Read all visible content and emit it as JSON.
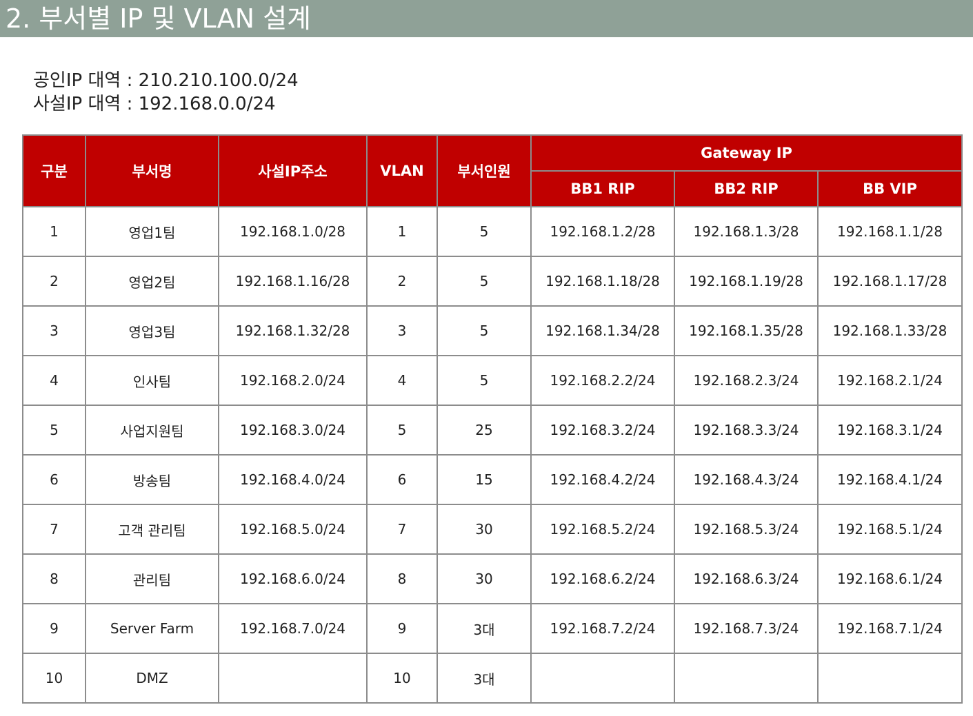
{
  "header": {
    "title": "2. 부서별 IP 및 VLAN 설계"
  },
  "ip_ranges": [
    {
      "label": "공인IP 대역",
      "value": "210.210.100.0/24"
    },
    {
      "label": "사설IP 대역",
      "value": "192.168.0.0/24"
    }
  ],
  "table": {
    "headers": {
      "no": "구분",
      "dept": "부서명",
      "subnet": "사설IP주소",
      "vlan": "VLAN",
      "staff": "부서인원",
      "gateway": "Gateway IP",
      "bb1": "BB1 RIP",
      "bb2": "BB2 RIP",
      "vip": "BB VIP"
    },
    "rows": [
      {
        "no": "1",
        "dept": "영업1팀",
        "subnet": "192.168.1.0/28",
        "vlan": "1",
        "staff": "5",
        "bb1": "192.168.1.2/28",
        "bb2": "192.168.1.3/28",
        "vip": "192.168.1.1/28"
      },
      {
        "no": "2",
        "dept": "영업2팀",
        "subnet": "192.168.1.16/28",
        "vlan": "2",
        "staff": "5",
        "bb1": "192.168.1.18/28",
        "bb2": "192.168.1.19/28",
        "vip": "192.168.1.17/28"
      },
      {
        "no": "3",
        "dept": "영업3팀",
        "subnet": "192.168.1.32/28",
        "vlan": "3",
        "staff": "5",
        "bb1": "192.168.1.34/28",
        "bb2": "192.168.1.35/28",
        "vip": "192.168.1.33/28"
      },
      {
        "no": "4",
        "dept": "인사팀",
        "subnet": "192.168.2.0/24",
        "vlan": "4",
        "staff": "5",
        "bb1": "192.168.2.2/24",
        "bb2": "192.168.2.3/24",
        "vip": "192.168.2.1/24"
      },
      {
        "no": "5",
        "dept": "사업지원팀",
        "subnet": "192.168.3.0/24",
        "vlan": "5",
        "staff": "25",
        "bb1": "192.168.3.2/24",
        "bb2": "192.168.3.3/24",
        "vip": "192.168.3.1/24"
      },
      {
        "no": "6",
        "dept": "방송팀",
        "subnet": "192.168.4.0/24",
        "vlan": "6",
        "staff": "15",
        "bb1": "192.168.4.2/24",
        "bb2": "192.168.4.3/24",
        "vip": "192.168.4.1/24"
      },
      {
        "no": "7",
        "dept": "고객 관리팀",
        "subnet": "192.168.5.0/24",
        "vlan": "7",
        "staff": "30",
        "bb1": "192.168.5.2/24",
        "bb2": "192.168.5.3/24",
        "vip": "192.168.5.1/24"
      },
      {
        "no": "8",
        "dept": "관리팀",
        "subnet": "192.168.6.0/24",
        "vlan": "8",
        "staff": "30",
        "bb1": "192.168.6.2/24",
        "bb2": "192.168.6.3/24",
        "vip": "192.168.6.1/24"
      },
      {
        "no": "9",
        "dept": "Server Farm",
        "subnet": "192.168.7.0/24",
        "vlan": "9",
        "staff": "3대",
        "bb1": "192.168.7.2/24",
        "bb2": "192.168.7.3/24",
        "vip": "192.168.7.1/24"
      },
      {
        "no": "10",
        "dept": "DMZ",
        "subnet": "",
        "vlan": "10",
        "staff": "3대",
        "bb1": "",
        "bb2": "",
        "vip": ""
      }
    ]
  },
  "colors": {
    "title_bar": "#8fa197",
    "header_bg": "#c00000",
    "header_text": "#ffffff",
    "border": "#8c8c8c"
  }
}
